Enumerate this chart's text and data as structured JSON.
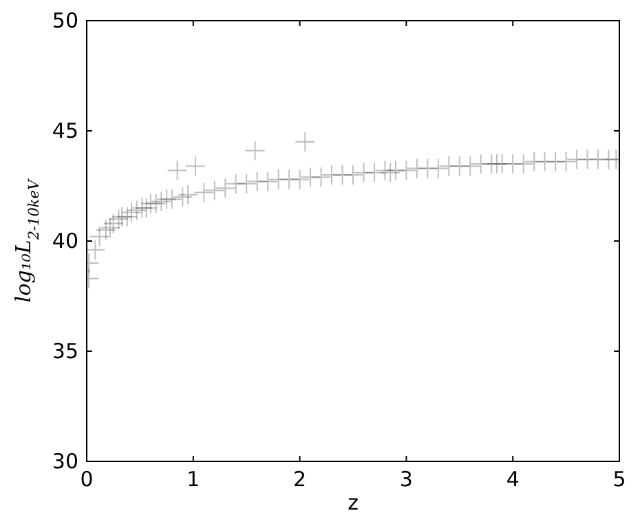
{
  "chart_data": {
    "type": "scatter",
    "xlabel": "z",
    "ylabel": "log₁₀L$_{2-10keV}$",
    "xlim": [
      0,
      5
    ],
    "ylim": [
      30,
      50
    ],
    "xticks": [
      0,
      1,
      2,
      3,
      4,
      5
    ],
    "yticks": [
      30,
      35,
      40,
      45,
      50
    ],
    "marker": "cross",
    "grid": false,
    "series": [
      {
        "color": "#000000",
        "x": [
          0.02,
          0.08,
          0.12,
          0.18,
          0.22,
          0.25,
          0.3,
          0.33,
          0.38,
          0.42,
          0.47,
          0.52,
          0.56,
          0.6,
          0.65,
          0.7,
          0.75,
          0.8,
          0.85,
          0.9,
          0.95,
          1.02,
          1.1,
          1.2,
          1.3,
          1.4,
          1.5,
          1.6,
          1.7,
          1.8,
          1.9,
          2.0,
          2.05,
          2.1,
          2.2,
          2.3,
          2.4,
          2.5,
          2.6,
          2.7,
          2.8,
          2.85,
          2.9,
          3.0,
          3.1,
          3.2,
          3.3,
          3.4,
          3.5,
          3.6,
          3.7,
          3.8,
          3.85,
          3.9,
          4.0,
          4.1,
          4.2,
          4.3,
          4.4,
          4.5,
          4.6,
          4.7,
          4.8,
          4.9,
          4.97,
          1.58,
          0.02
        ],
        "values": [
          39.0,
          39.6,
          40.2,
          40.5,
          40.6,
          40.8,
          41.0,
          41.1,
          41.1,
          41.3,
          41.4,
          41.5,
          41.5,
          41.7,
          41.7,
          41.8,
          41.9,
          41.9,
          43.2,
          42.0,
          42.1,
          43.4,
          42.2,
          42.3,
          42.4,
          42.6,
          42.6,
          42.7,
          42.7,
          42.8,
          42.8,
          42.8,
          44.5,
          42.9,
          42.9,
          43.0,
          43.0,
          43.0,
          43.1,
          43.1,
          43.2,
          43.1,
          43.2,
          43.2,
          43.3,
          43.3,
          43.3,
          43.4,
          43.4,
          43.4,
          43.5,
          43.5,
          43.5,
          43.5,
          43.5,
          43.5,
          43.6,
          43.6,
          43.6,
          43.6,
          43.7,
          43.7,
          43.7,
          43.7,
          43.7,
          44.1,
          38.3
        ]
      }
    ]
  }
}
